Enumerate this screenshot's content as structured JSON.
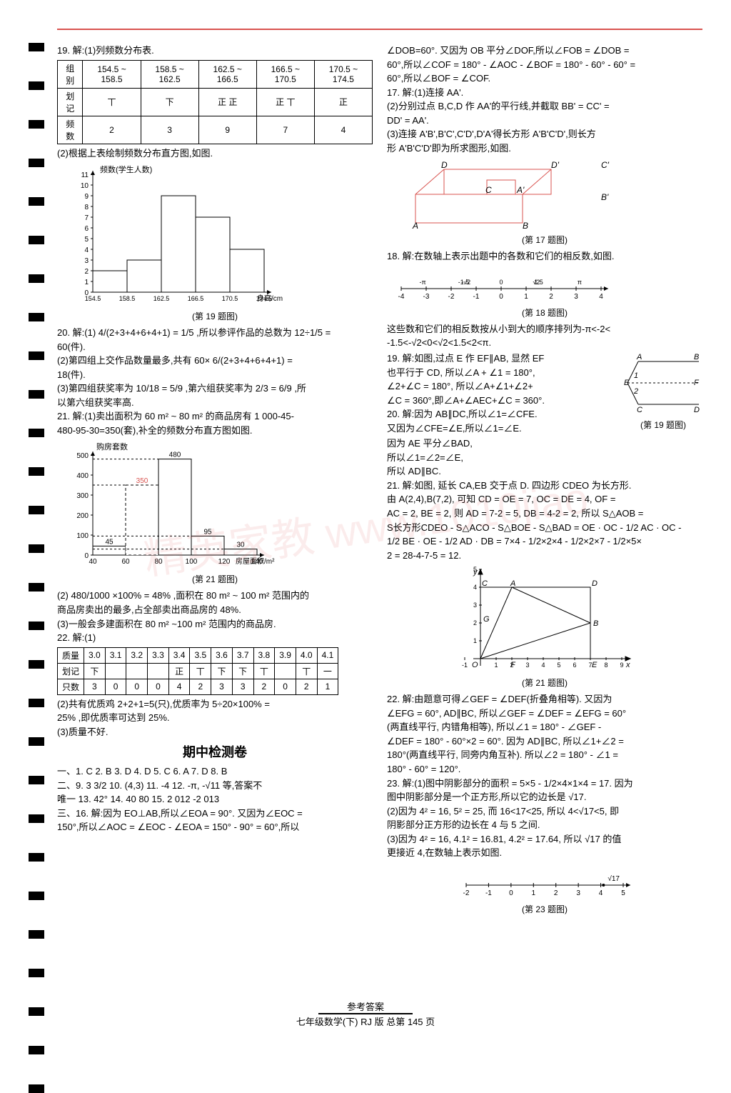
{
  "watermark": "精英家教 www.1010jiao",
  "top_bar_color": "#d9534f",
  "punch_hole_count": 28,
  "left": {
    "q19": {
      "intro": "19. 解:(1)列频数分布表.",
      "table": {
        "headers": [
          "组别",
          "154.5 ~ 158.5",
          "158.5 ~ 162.5",
          "162.5 ~ 166.5",
          "166.5 ~ 170.5",
          "170.5 ~ 174.5"
        ],
        "rows": [
          [
            "划记",
            "丅",
            "下",
            "正 正",
            "正 丅",
            "正"
          ],
          [
            "频数",
            "2",
            "3",
            "9",
            "7",
            "4"
          ]
        ]
      },
      "chart_intro": "(2)根据上表绘制频数分布直方图,如图.",
      "histogram": {
        "ylabel": "频数(学生人数)",
        "xlabel": "身高/cm",
        "yticks": [
          0,
          1,
          2,
          3,
          4,
          5,
          6,
          7,
          8,
          9,
          10,
          11
        ],
        "xticks": [
          "154.5",
          "158.5",
          "162.5",
          "166.5",
          "170.5",
          "174.5"
        ],
        "bars": [
          2,
          3,
          9,
          7,
          4
        ],
        "bar_color": "#ffffff",
        "border_color": "#000000",
        "caption": "(第 19 题图)"
      }
    },
    "q20": {
      "l1": "20. 解:(1) 4/(2+3+4+6+4+1) = 1/5 ,所以参评作品的总数为 12÷1/5 =",
      "l2": "60(件).",
      "l3": "(2)第四组上交作品数量最多,共有 60× 6/(2+3+4+6+4+1) =",
      "l4": "18(件).",
      "l5": "(3)第四组获奖率为 10/18 = 5/9 ,第六组获奖率为 2/3 = 6/9 ,所",
      "l6": "以第六组获奖率高."
    },
    "q21": {
      "l1": "21. 解:(1)卖出面积为 60 m² ~ 80 m² 的商品房有 1 000-45-",
      "l2": "480-95-30=350(套),补全的频数分布直方图如图.",
      "histogram": {
        "ylabel": "购房套数",
        "xlabel": "房屋面积/m²",
        "yticks": [
          0,
          100,
          200,
          300,
          400,
          500
        ],
        "xticks": [
          "40",
          "60",
          "80",
          "100",
          "120",
          "140"
        ],
        "bars": [
          {
            "v": 45,
            "label": "45"
          },
          {
            "v": 350,
            "label": "350",
            "dashed": true
          },
          {
            "v": 480,
            "label": "480"
          },
          {
            "v": 95,
            "label": "95"
          },
          {
            "v": 30,
            "label": "30"
          }
        ],
        "highlight_color": "#d9534f",
        "border_color": "#000000",
        "caption": "(第 21 题图)"
      },
      "l3": "(2) 480/1000 ×100% = 48% ,面积在 80 m² ~ 100 m² 范围内的",
      "l4": "商品房卖出的最多,占全部卖出商品房的 48%.",
      "l5": "(3)一般会多建面积在 80 m² ~100 m² 范围内的商品房."
    },
    "q22": {
      "l1": "22. 解:(1)",
      "table": {
        "headers": [
          "质量",
          "3.0",
          "3.1",
          "3.2",
          "3.3",
          "3.4",
          "3.5",
          "3.6",
          "3.7",
          "3.8",
          "3.9",
          "4.0",
          "4.1"
        ],
        "rows": [
          [
            "划记",
            "下",
            "",
            "",
            "",
            "正",
            "丅",
            "下",
            "下",
            "丅",
            "",
            "丅",
            "一"
          ],
          [
            "只数",
            "3",
            "0",
            "0",
            "0",
            "4",
            "2",
            "3",
            "3",
            "2",
            "0",
            "2",
            "1"
          ]
        ]
      },
      "l2": "(2)共有优质鸡 2+2+1=5(只),优质率为 5÷20×100% =",
      "l3": "25% ,即优质率可达到 25%.",
      "l4": "(3)质量不好."
    },
    "midtitle": "期中检测卷",
    "answers": {
      "a1": "一、1. C  2. B  3. D  4. D  5. C  6. A  7. D  8. B",
      "a2": "二、9. 3   3/2   10. (4,3)   11. -4   12. -π, -√11 等,答案不",
      "a3": "唯一   13. 42°  14. 40   80   15. 2 012   -2 013",
      "a4": "三、16. 解:因为 EO⊥AB,所以∠EOA = 90°. 又因为∠EOC =",
      "a5": "150°,所以∠AOC = ∠EOC - ∠EOA = 150° - 90° = 60°,所以"
    }
  },
  "right": {
    "cont16": {
      "l1": "∠DOB=60°. 又因为 OB 平分∠DOF,所以∠FOB = ∠DOB =",
      "l2": "60°,所以∠COF = 180° - ∠AOC - ∠BOF = 180° - 60° - 60° =",
      "l3": "60°,所以∠BOF = ∠COF."
    },
    "q17": {
      "l1": "17. 解:(1)连接 AA'.",
      "l2": "(2)分别过点 B,C,D 作 AA'的平行线,并截取 BB' = CC' =",
      "l3": "DD' = AA'.",
      "l4": "(3)连接 A'B',B'C',C'D',D'A'得长方形 A'B'C'D',则长方",
      "l5": "形 A'B'C'D'即为所求图形,如图.",
      "diagram": {
        "labels": [
          "A",
          "B",
          "C",
          "D",
          "A'",
          "B'",
          "C'",
          "D'"
        ],
        "caption": "(第 17 题图)",
        "line_color": "#d9534f"
      }
    },
    "q18": {
      "l1": "18. 解:在数轴上表示出题中的各数和它们的相反数,如图.",
      "numberline": {
        "ticks": [
          -4,
          -3,
          -2,
          -1,
          0,
          1,
          2,
          3,
          4
        ],
        "labels_top": [
          "-π",
          "-1.5",
          "-√2",
          "0",
          "√2",
          "1.5",
          "π"
        ],
        "caption": "(第 18 题图)"
      },
      "l2": "这些数和它们的相反数按从小到大的顺序排列为-π<-2<",
      "l3": "-1.5<-√2<0<√2<1.5<2<π."
    },
    "q19r": {
      "l1": "19. 解:如图,过点 E 作 EF∥AB, 显然 EF",
      "l2": "也平行于 CD, 所以∠A + ∠1 = 180°,",
      "l3": "∠2+∠C = 180°, 所以∠A+∠1+∠2+",
      "l4": "∠C = 360°,即∠A+∠AEC+∠C = 360°.",
      "diagram": {
        "labels": [
          "A",
          "B",
          "C",
          "D",
          "E",
          "F",
          "1",
          "2"
        ],
        "caption": "(第 19 题图)"
      }
    },
    "q20r": {
      "l1": "20. 解:因为 AB∥DC,所以∠1=∠CFE.",
      "l2": "又因为∠CFE=∠E,所以∠1=∠E.",
      "l3": "因为 AE 平分∠BAD,",
      "l4": "所以∠1=∠2=∠E,",
      "l5": "所以 AD∥BC."
    },
    "q21r": {
      "l1": "21. 解:如图, 延长 CA,EB 交于点 D. 四边形 CDEO 为长方形.",
      "l2": "由 A(2,4),B(7,2), 可知 CD = OE = 7, OC = DE = 4, OF =",
      "l3": "AC = 2, BE = 2, 则 AD = 7-2 = 5, DB = 4-2 = 2, 所以 S△AOB =",
      "l4": "S长方形CDEO - S△ACO - S△BOE - S△BAD = OE · OC - 1/2 AC · OC -",
      "l5": "1/2 BE · OE - 1/2 AD · DB = 7×4 - 1/2×2×4 - 1/2×2×7 - 1/2×5×",
      "l6": "2 = 28-4-7-5 = 12.",
      "diagram": {
        "ylabel": "y",
        "xlabel": "x",
        "xticks": [
          -1,
          1,
          2,
          3,
          4,
          5,
          6,
          7,
          8,
          9
        ],
        "yticks": [
          -1,
          1,
          2,
          3,
          4,
          5
        ],
        "points": {
          "C": "C",
          "A": "A",
          "D": "D",
          "G": "G",
          "B": "B",
          "O": "O",
          "F": "F",
          "E": "E"
        },
        "caption": "(第 21 题图)"
      }
    },
    "q22r": {
      "l1": "22. 解:由题意可得∠GEF = ∠DEF(折叠角相等). 又因为",
      "l2": "∠EFG = 60°, AD∥BC, 所以∠GEF = ∠DEF = ∠EFG = 60°",
      "l3": "(两直线平行, 内错角相等), 所以∠1 = 180° - ∠GEF -",
      "l4": "∠DEF = 180° - 60°×2 = 60°. 因为 AD∥BC, 所以∠1+∠2 =",
      "l5": "180°(两直线平行, 同旁内角互补). 所以∠2 = 180° - ∠1 =",
      "l6": "180° - 60° = 120°."
    },
    "q23r": {
      "l1": "23. 解:(1)图中阴影部分的面积 = 5×5 - 1/2×4×1×4 = 17. 因为",
      "l2": "图中阴影部分是一个正方形,所以它的边长是 √17.",
      "l3": "(2)因为 4² = 16, 5² = 25, 而 16<17<25, 所以 4<√17<5, 即",
      "l4": "阴影部分正方形的边长在 4 与 5 之间.",
      "l5": "(3)因为 4² = 16, 4.1² = 16.81, 4.2² = 17.64, 所以 √17 的值",
      "l6": "更接近 4,在数轴上表示如图.",
      "numberline": {
        "ticks": [
          -2,
          -1,
          0,
          1,
          2,
          3,
          4,
          5
        ],
        "mark": "√17",
        "caption": "(第 23 题图)"
      }
    }
  },
  "footer": {
    "l1": "参考答案",
    "l2": "七年级数学(下)  RJ 版  总第 145 页"
  }
}
